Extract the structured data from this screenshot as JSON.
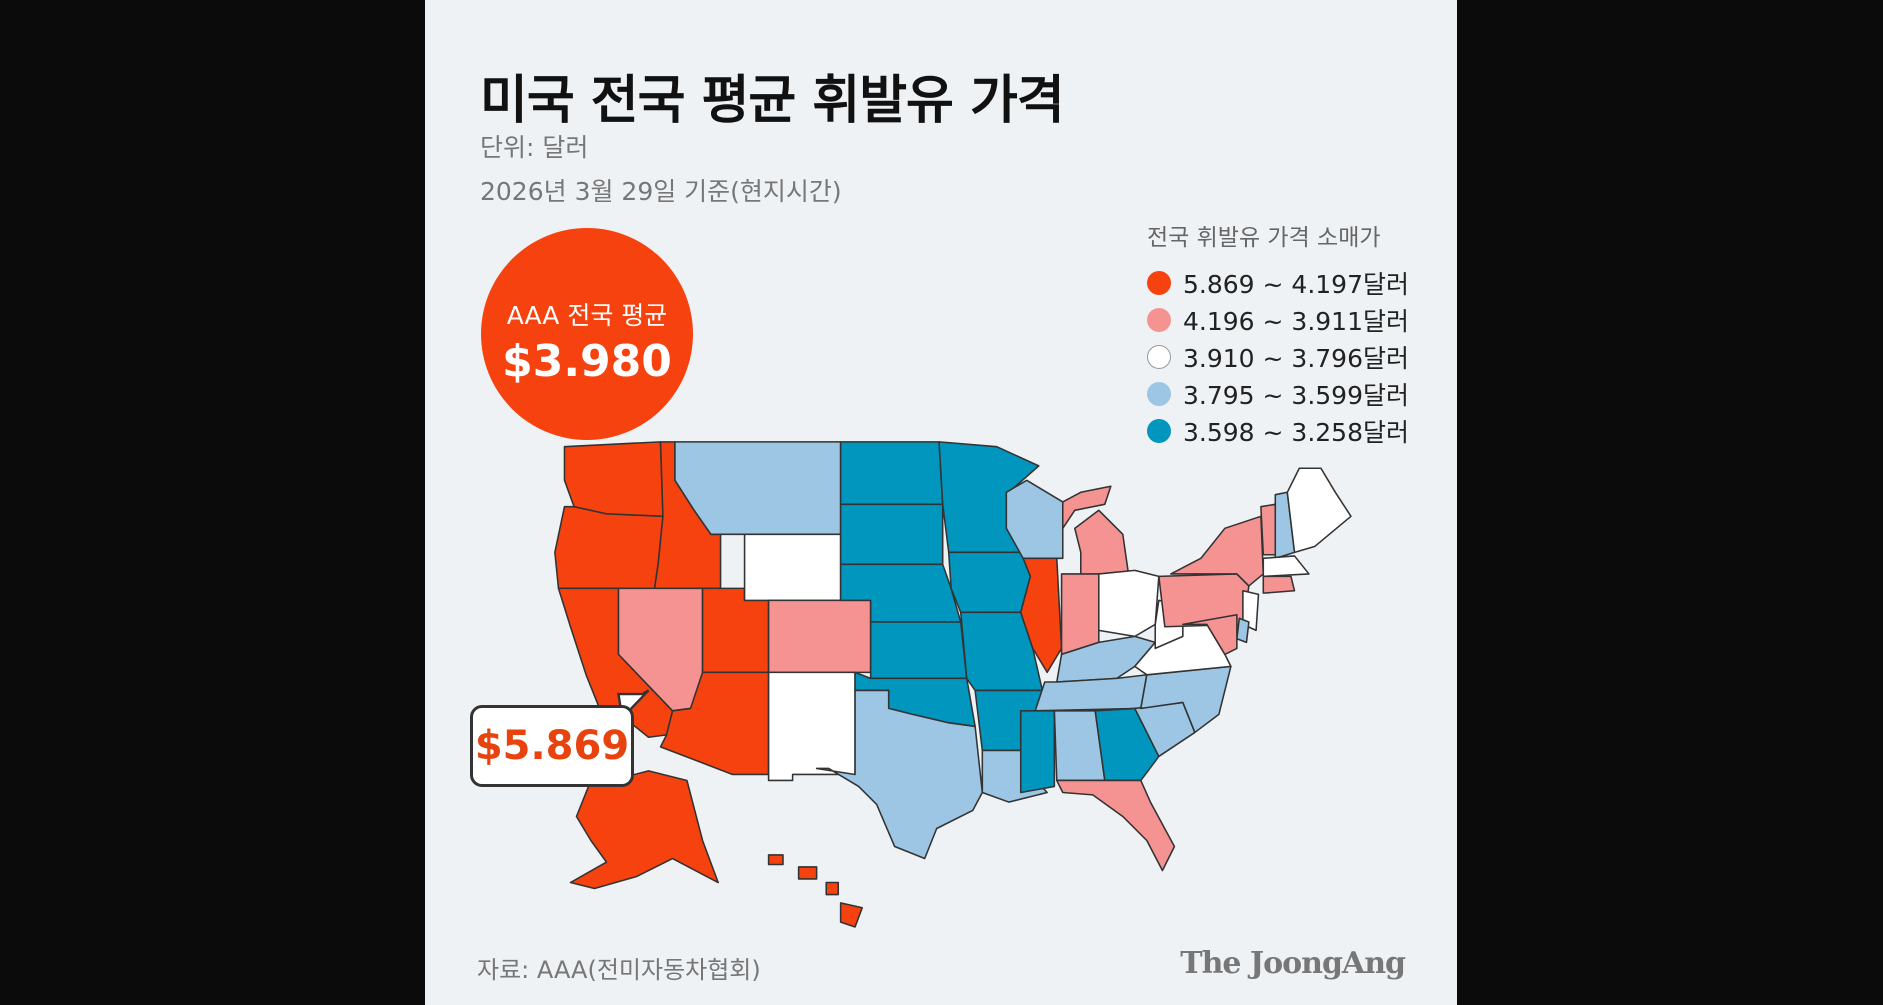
{
  "header": {
    "title": "미국 전국 평균 휘발유 가격",
    "unit": "단위: 달러",
    "date": "2026년 3월 29일 기준(현지시간)"
  },
  "national_average": {
    "label": "AAA 전국 평균",
    "value": "$3.980"
  },
  "highest_callout": {
    "value": "$5.869"
  },
  "legend": {
    "title": "전국 휘발유 가격 소매가",
    "items": [
      {
        "label": "5.869 ~ 4.197달러",
        "color": "#f5420f"
      },
      {
        "label": "4.196 ~ 3.911달러",
        "color": "#f59393"
      },
      {
        "label": "3.910 ~ 3.796달러",
        "color": "#ffffff"
      },
      {
        "label": "3.795 ~ 3.599달러",
        "color": "#9cc6e4"
      },
      {
        "label": "3.598 ~ 3.258달러",
        "color": "#0096bd"
      }
    ]
  },
  "map_data": {
    "state_tiers": {
      "WA": 0,
      "OR": 0,
      "CA": 0,
      "ID": 0,
      "NV": 1,
      "UT": 0,
      "AZ": 0,
      "MT": 3,
      "WY": 2,
      "CO": 1,
      "NM": 2,
      "ND": 4,
      "SD": 4,
      "NE": 4,
      "KS": 4,
      "OK": 4,
      "TX": 3,
      "MN": 4,
      "IA": 4,
      "MO": 4,
      "AR": 4,
      "LA": 3,
      "WI": 3,
      "IL": 0,
      "MI": 1,
      "IN": 1,
      "OH": 2,
      "KY": 3,
      "TN": 3,
      "MS": 4,
      "AL": 3,
      "GA": 4,
      "FL": 1,
      "SC": 3,
      "NC": 3,
      "VA": 2,
      "WV": 2,
      "PA": 1,
      "NY": 1,
      "VT": 1,
      "NH": 3,
      "ME": 2,
      "MA": 2,
      "CT": 1,
      "NJ": 2,
      "DE": 3,
      "MD": 1,
      "AK": 0,
      "HI": 0
    }
  },
  "footer": {
    "source": "자료: AAA(전미자동차협회)",
    "logo": "The JoongAng"
  }
}
